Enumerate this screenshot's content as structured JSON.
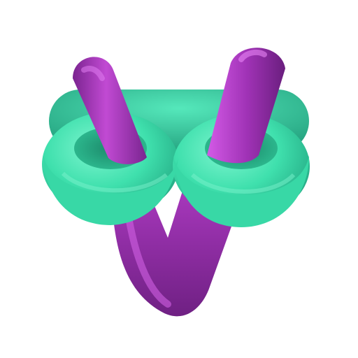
{
  "image": {
    "subject": "linked-tubes-3d-render",
    "background_color": "#ffffff",
    "colors": {
      "torus": "#3ee6b2",
      "torus_highlight": "#8ff7d8",
      "torus_shadow": "#1fa683",
      "tube": "#b23ec7",
      "tube_highlight": "#e46ef2",
      "tube_shadow": "#6e1f82"
    }
  }
}
